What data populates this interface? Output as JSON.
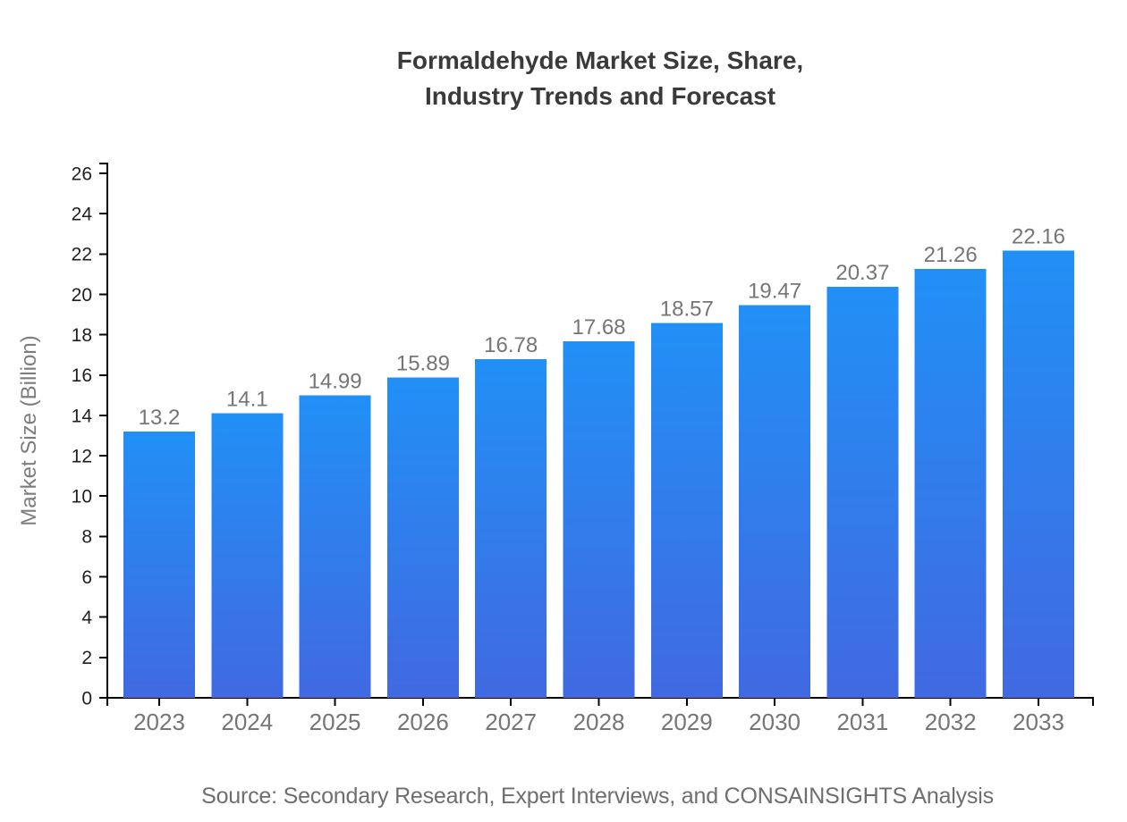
{
  "chart_data": {
    "type": "bar",
    "title": "Formaldehyde Market Size, Share,\nIndustry Trends and Forecast",
    "ylabel": "Market Size (Billion)",
    "xlabel": "",
    "categories": [
      "2023",
      "2024",
      "2025",
      "2026",
      "2027",
      "2028",
      "2029",
      "2030",
      "2031",
      "2032",
      "2033"
    ],
    "values": [
      13.2,
      14.1,
      14.99,
      15.89,
      16.78,
      17.68,
      18.57,
      19.47,
      20.37,
      21.26,
      22.16
    ],
    "value_labels": [
      "13.2",
      "14.1",
      "14.99",
      "15.89",
      "16.78",
      "17.68",
      "18.57",
      "19.47",
      "20.37",
      "21.26",
      "22.16"
    ],
    "yticks": [
      0,
      2,
      4,
      6,
      8,
      10,
      12,
      14,
      16,
      18,
      20,
      22,
      24,
      26
    ],
    "ylim": [
      0,
      26
    ],
    "grid": false,
    "legend_position": "none",
    "source": "Source: Secondary Research, Expert Interviews, and CONSAINSIGHTS Analysis",
    "colors": {
      "bar_gradient_top": "#2190f6",
      "bar_gradient_bottom": "#4169e1",
      "axis": "#000000",
      "y_tick_label": "#1f1f1f",
      "category_label": "#757575",
      "value_label": "#757575",
      "title": "#3a3a3a",
      "axis_title": "#7d7d7d",
      "source": "#6e6e6e",
      "background": "#ffffff"
    }
  }
}
